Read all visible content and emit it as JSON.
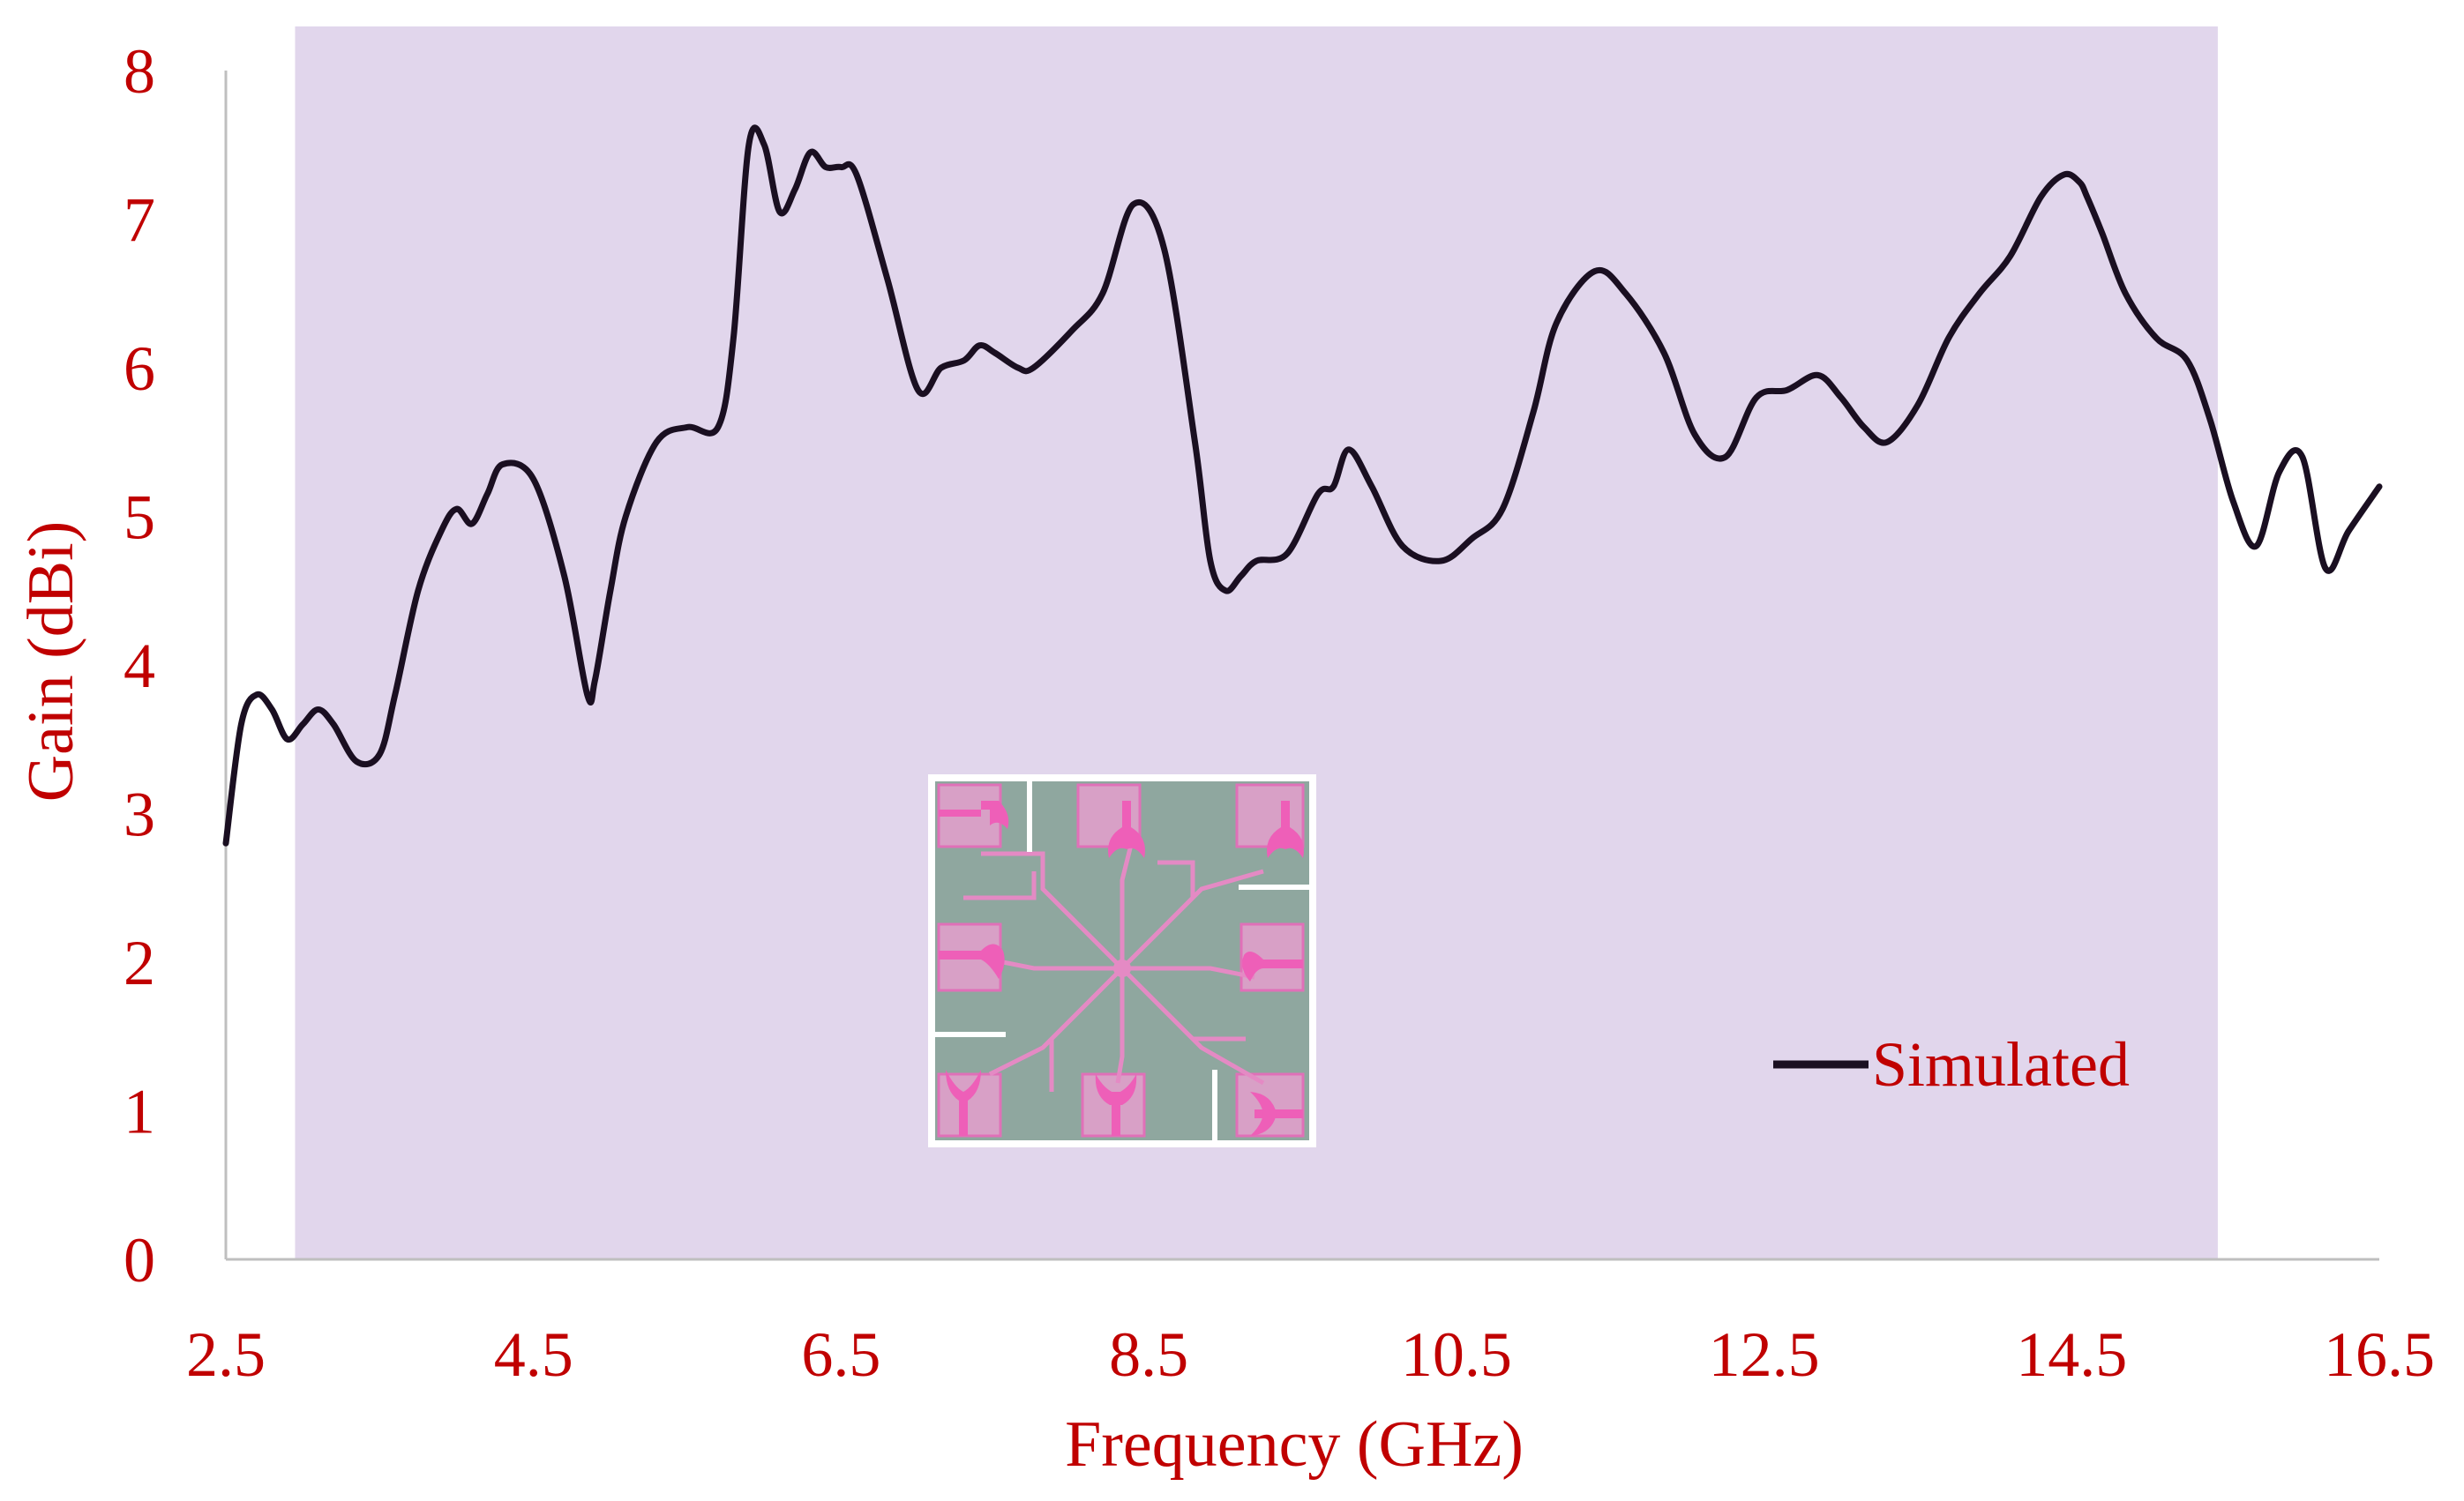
{
  "chart_data": {
    "type": "line",
    "xlabel": "Frequency (GHz)",
    "ylabel": "Gain (dBi)",
    "xlim": [
      2.5,
      16.5
    ],
    "ylim": [
      0,
      8
    ],
    "x_ticks": [
      "2.5",
      "4.5",
      "6.5",
      "8.5",
      "10.5",
      "12.5",
      "14.5",
      "16.5"
    ],
    "y_ticks": [
      "0",
      "1",
      "2",
      "3",
      "4",
      "5",
      "6",
      "7",
      "8"
    ],
    "grid": false,
    "legend_position": "bottom-right",
    "highlighted_band": [
      2.95,
      15.45
    ],
    "inset": "antenna array layout image",
    "series": [
      {
        "name": "Simulated",
        "x": [
          2.5,
          2.6,
          2.7,
          2.8,
          2.9,
          3.0,
          3.1,
          3.2,
          3.35,
          3.5,
          3.6,
          3.75,
          3.9,
          4.0,
          4.1,
          4.2,
          4.3,
          4.5,
          4.7,
          4.85,
          4.9,
          5.0,
          5.1,
          5.3,
          5.5,
          5.7,
          5.8,
          5.9,
          6.0,
          6.1,
          6.2,
          6.3,
          6.4,
          6.5,
          6.6,
          6.8,
          7.0,
          7.15,
          7.3,
          7.4,
          7.5,
          7.65,
          7.75,
          8.0,
          8.2,
          8.4,
          8.6,
          8.8,
          8.9,
          9.0,
          9.1,
          9.2,
          9.4,
          9.6,
          9.7,
          9.8,
          9.95,
          10.15,
          10.4,
          10.6,
          10.8,
          11.0,
          11.15,
          11.4,
          11.6,
          11.85,
          12.05,
          12.25,
          12.45,
          12.65,
          12.85,
          13.0,
          13.15,
          13.3,
          13.5,
          13.7,
          13.9,
          14.1,
          14.3,
          14.45,
          14.55,
          14.6,
          14.7,
          14.85,
          15.05,
          15.25,
          15.4,
          15.55,
          15.7,
          15.85,
          16.0,
          16.15,
          16.3,
          16.5
        ],
        "values": [
          2.8,
          3.6,
          3.8,
          3.7,
          3.5,
          3.6,
          3.7,
          3.6,
          3.35,
          3.4,
          3.8,
          4.5,
          4.9,
          5.05,
          4.95,
          5.15,
          5.35,
          5.25,
          4.6,
          3.8,
          3.9,
          4.5,
          5.0,
          5.5,
          5.6,
          5.6,
          6.2,
          7.5,
          7.5,
          7.05,
          7.2,
          7.45,
          7.35,
          7.35,
          7.3,
          6.6,
          5.85,
          6.0,
          6.05,
          6.15,
          6.1,
          6.0,
          6.0,
          6.25,
          6.5,
          7.1,
          6.8,
          5.5,
          4.7,
          4.5,
          4.6,
          4.7,
          4.75,
          5.15,
          5.2,
          5.45,
          5.2,
          4.8,
          4.7,
          4.85,
          5.05,
          5.7,
          6.3,
          6.65,
          6.5,
          6.1,
          5.55,
          5.4,
          5.8,
          5.85,
          5.95,
          5.8,
          5.6,
          5.5,
          5.75,
          6.2,
          6.5,
          6.75,
          7.15,
          7.3,
          7.25,
          7.15,
          6.9,
          6.5,
          6.2,
          6.05,
          5.65,
          5.1,
          4.8,
          5.3,
          5.4,
          4.65,
          4.9,
          5.2
        ]
      }
    ]
  },
  "colors": {
    "axis_text": "#c00000",
    "line": "#1a0f21",
    "band": "#e1d6ec",
    "axis_line": "#bfbfbf"
  }
}
